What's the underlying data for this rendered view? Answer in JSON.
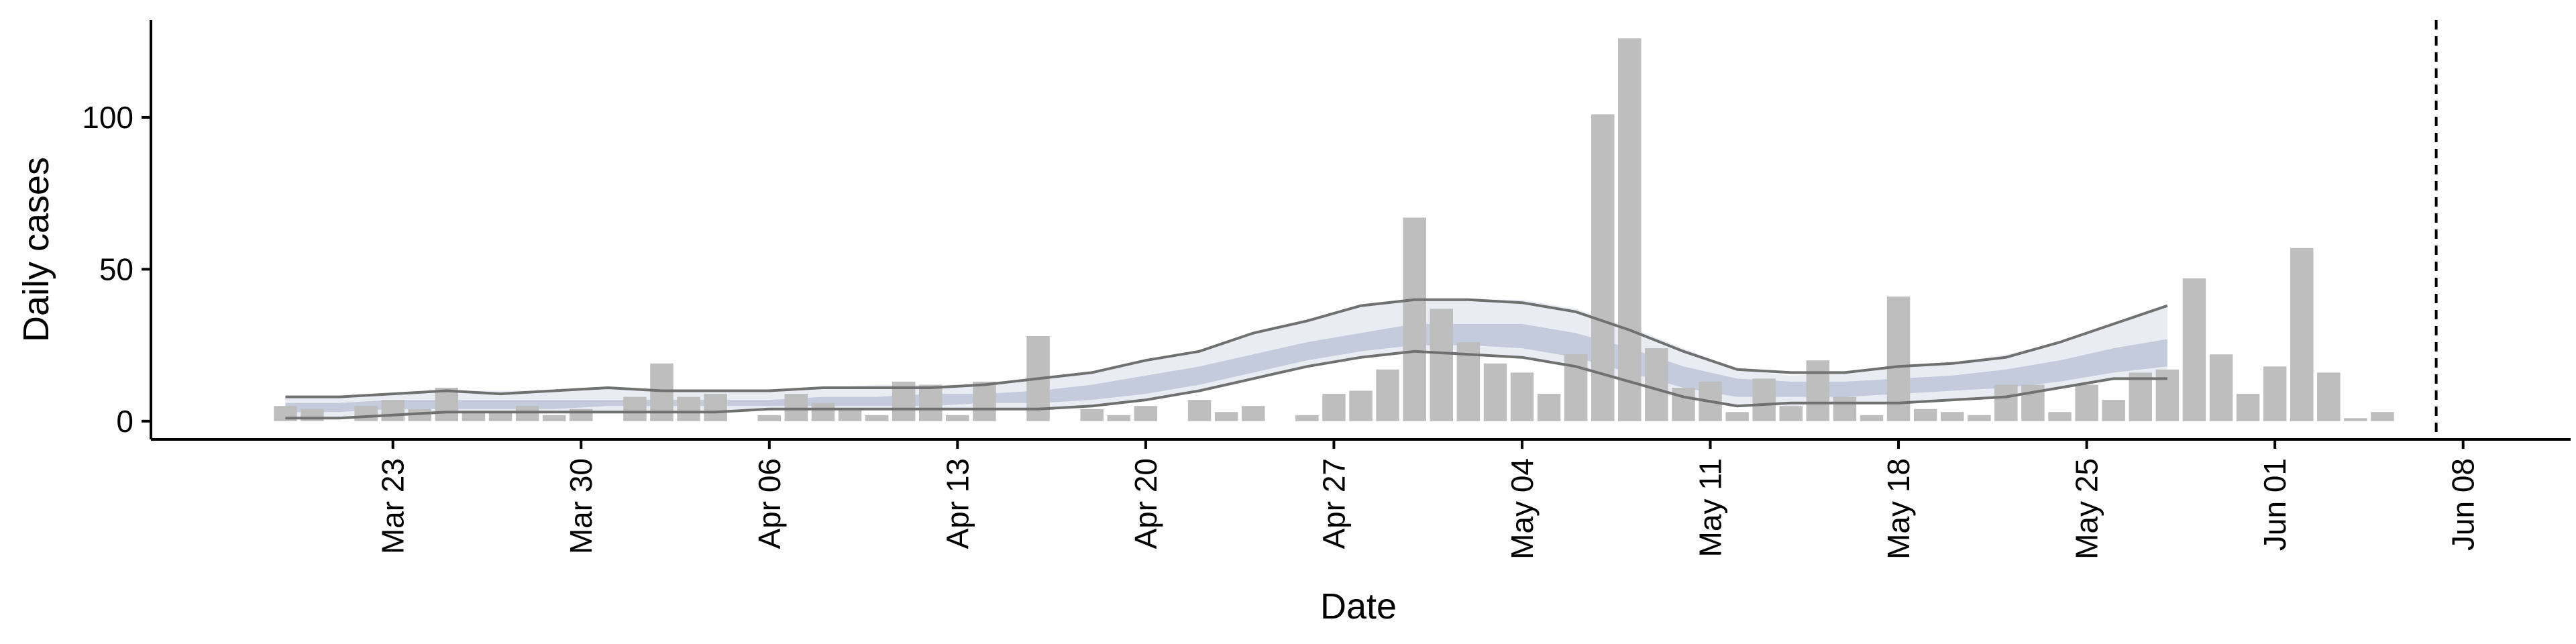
{
  "chart_data": {
    "type": "bar",
    "xlabel": "Date",
    "ylabel": "Daily cases",
    "x_tick_labels": [
      "Mar 23",
      "Mar 30",
      "Apr 06",
      "Apr 13",
      "Apr 20",
      "Apr 27",
      "May 04",
      "May 11",
      "May 18",
      "May 25",
      "Jun 01",
      "Jun 08"
    ],
    "x_tick_dates": [
      "2020-03-23",
      "2020-03-30",
      "2020-04-06",
      "2020-04-13",
      "2020-04-20",
      "2020-04-27",
      "2020-05-04",
      "2020-05-11",
      "2020-05-18",
      "2020-05-25",
      "2020-06-01",
      "2020-06-08"
    ],
    "y_ticks": [
      0,
      50,
      100
    ],
    "xlim": [
      "2020-03-14",
      "2020-06-12"
    ],
    "ylim": [
      -6,
      132
    ],
    "grid": false,
    "vline_date": "2020-06-07",
    "colors": {
      "bars": "#bebebe",
      "ribbon_outer": "#e9ecf3",
      "ribbon_inner": "#c3cbdc",
      "bound_lines": "#707070",
      "axis": "#000000"
    },
    "bars": {
      "dates": [
        "2020-03-19",
        "2020-03-20",
        "2020-03-21",
        "2020-03-22",
        "2020-03-23",
        "2020-03-24",
        "2020-03-25",
        "2020-03-26",
        "2020-03-27",
        "2020-03-28",
        "2020-03-29",
        "2020-03-30",
        "2020-03-31",
        "2020-04-01",
        "2020-04-02",
        "2020-04-03",
        "2020-04-04",
        "2020-04-05",
        "2020-04-06",
        "2020-04-07",
        "2020-04-08",
        "2020-04-09",
        "2020-04-10",
        "2020-04-11",
        "2020-04-12",
        "2020-04-13",
        "2020-04-14",
        "2020-04-15",
        "2020-04-16",
        "2020-04-17",
        "2020-04-18",
        "2020-04-19",
        "2020-04-20",
        "2020-04-21",
        "2020-04-22",
        "2020-04-23",
        "2020-04-24",
        "2020-04-25",
        "2020-04-26",
        "2020-04-27",
        "2020-04-28",
        "2020-04-29",
        "2020-04-30",
        "2020-05-01",
        "2020-05-02",
        "2020-05-03",
        "2020-05-04",
        "2020-05-05",
        "2020-05-06",
        "2020-05-07",
        "2020-05-08",
        "2020-05-09",
        "2020-05-10",
        "2020-05-11",
        "2020-05-12",
        "2020-05-13",
        "2020-05-14",
        "2020-05-15",
        "2020-05-16",
        "2020-05-17",
        "2020-05-18",
        "2020-05-19",
        "2020-05-20",
        "2020-05-21",
        "2020-05-22",
        "2020-05-23",
        "2020-05-24",
        "2020-05-25",
        "2020-05-26",
        "2020-05-27",
        "2020-05-28",
        "2020-05-29",
        "2020-05-30",
        "2020-05-31",
        "2020-06-01",
        "2020-06-02",
        "2020-06-03",
        "2020-06-04",
        "2020-06-05",
        "2020-06-06",
        "2020-06-07"
      ],
      "values": [
        5,
        4,
        0,
        5,
        7,
        4,
        11,
        3,
        3,
        5,
        2,
        4,
        0,
        8,
        19,
        8,
        9,
        0,
        2,
        9,
        6,
        4,
        2,
        13,
        12,
        2,
        13,
        0,
        28,
        0,
        4,
        2,
        5,
        0,
        7,
        3,
        5,
        0,
        2,
        9,
        10,
        17,
        67,
        37,
        26,
        19,
        16,
        9,
        22,
        101,
        126,
        24,
        11,
        13,
        3,
        14,
        5,
        20,
        8,
        2,
        41,
        4,
        3,
        2,
        12,
        12,
        3,
        12,
        7,
        16,
        17,
        47,
        22,
        9,
        18,
        57,
        16,
        1,
        3,
        0,
        0
      ]
    },
    "estimate": {
      "dates": [
        "2020-03-19",
        "2020-03-21",
        "2020-03-23",
        "2020-03-25",
        "2020-03-27",
        "2020-03-29",
        "2020-03-31",
        "2020-04-02",
        "2020-04-04",
        "2020-04-06",
        "2020-04-08",
        "2020-04-10",
        "2020-04-12",
        "2020-04-14",
        "2020-04-16",
        "2020-04-18",
        "2020-04-20",
        "2020-04-22",
        "2020-04-24",
        "2020-04-26",
        "2020-04-28",
        "2020-04-30",
        "2020-05-02",
        "2020-05-04",
        "2020-05-06",
        "2020-05-08",
        "2020-05-10",
        "2020-05-12",
        "2020-05-14",
        "2020-05-16",
        "2020-05-18",
        "2020-05-20",
        "2020-05-22",
        "2020-05-24",
        "2020-05-26",
        "2020-05-28"
      ],
      "outer_upper": [
        8,
        8,
        9,
        10,
        10,
        10,
        11,
        10,
        10,
        10,
        11,
        12,
        12,
        12,
        14,
        16,
        20,
        23,
        29,
        33,
        38,
        40,
        40,
        40,
        37,
        31,
        24,
        17,
        15,
        16,
        18,
        19,
        22,
        26,
        32,
        38
      ],
      "outer_lower": [
        1,
        1,
        2,
        3,
        3,
        3,
        3,
        3,
        3,
        4,
        4,
        4,
        4,
        4,
        4,
        5,
        7,
        10,
        14,
        18,
        21,
        23,
        22,
        21,
        18,
        13,
        8,
        5,
        5,
        6,
        6,
        7,
        8,
        11,
        14,
        14
      ],
      "inner_upper": [
        6,
        6,
        7,
        7,
        7,
        7,
        7,
        7,
        7,
        7,
        8,
        8,
        9,
        9,
        10,
        12,
        15,
        18,
        22,
        26,
        29,
        32,
        32,
        32,
        29,
        24,
        18,
        14,
        13,
        13,
        14,
        15,
        17,
        20,
        24,
        27
      ],
      "inner_lower": [
        3,
        3,
        4,
        4,
        4,
        4,
        5,
        5,
        5,
        5,
        5,
        5,
        5,
        6,
        6,
        7,
        9,
        12,
        16,
        20,
        23,
        25,
        25,
        24,
        21,
        16,
        11,
        8,
        8,
        8,
        9,
        10,
        11,
        13,
        16,
        18
      ],
      "line_upper": [
        8,
        8,
        9,
        10,
        9,
        10,
        11,
        10,
        10,
        10,
        11,
        11,
        11,
        12,
        14,
        16,
        20,
        23,
        29,
        33,
        38,
        40,
        40,
        39,
        36,
        30,
        23,
        17,
        16,
        16,
        18,
        19,
        21,
        26,
        32,
        38
      ],
      "line_lower": [
        1,
        1,
        2,
        3,
        3,
        3,
        3,
        3,
        3,
        4,
        4,
        4,
        4,
        4,
        4,
        5,
        7,
        10,
        14,
        18,
        21,
        23,
        22,
        21,
        18,
        13,
        8,
        5,
        6,
        6,
        6,
        7,
        8,
        11,
        14,
        14
      ]
    }
  }
}
